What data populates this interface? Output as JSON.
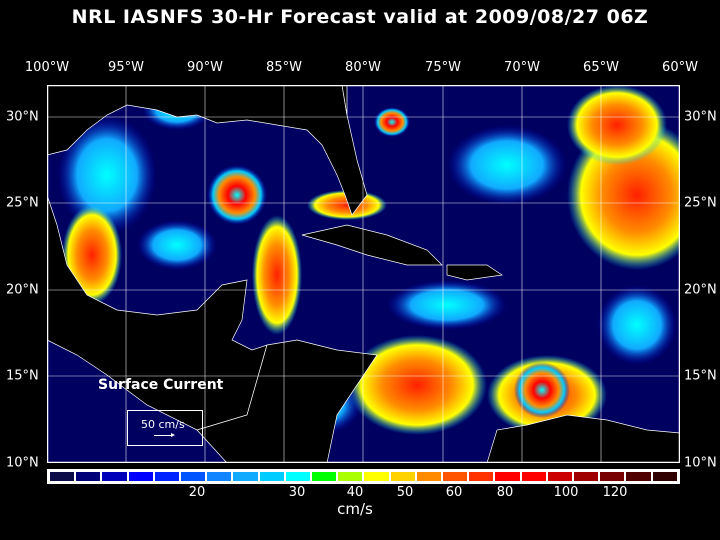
{
  "title": "NRL IASNFS  30-Hr Forecast valid at 2009/08/27 06Z",
  "map": {
    "lon_labels": [
      "100°W",
      "95°W",
      "90°W",
      "85°W",
      "80°W",
      "75°W",
      "70°W",
      "65°W",
      "60°W"
    ],
    "lat_labels": [
      "30°N",
      "25°N",
      "20°N",
      "15°N",
      "10°N"
    ],
    "field_label": "Surface Current",
    "scale_vector": {
      "label": "50 cm/s",
      "value": 50,
      "units": "cm/s"
    }
  },
  "colorbar": {
    "units": "cm/s",
    "tick_labels": [
      "20",
      "30",
      "40",
      "50",
      "60",
      "80",
      "100",
      "120"
    ],
    "colors": [
      "#0c0c48",
      "#000078",
      "#0000bb",
      "#0000ff",
      "#0022ff",
      "#0055ff",
      "#1184ff",
      "#11aaff",
      "#00ccff",
      "#00ffff",
      "#00ff00",
      "#aaff00",
      "#ffff00",
      "#ffd200",
      "#ff8c00",
      "#ff5500",
      "#ff3300",
      "#ff0000",
      "#ff0000",
      "#cc0000",
      "#a00000",
      "#780000",
      "#500000",
      "#300000"
    ]
  }
}
